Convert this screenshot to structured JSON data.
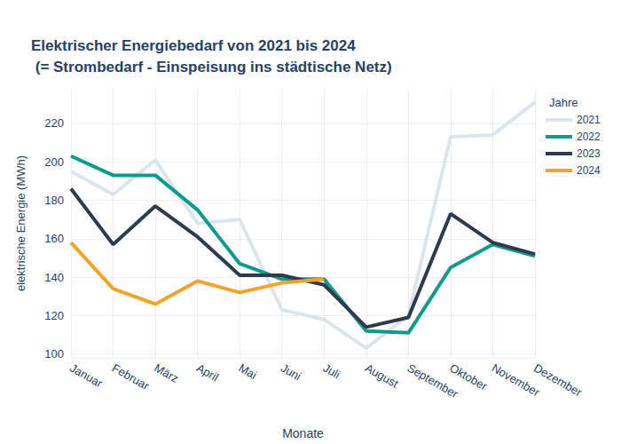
{
  "chart_data": {
    "type": "line",
    "title": "Elektrischer Energiebedarf von 2021 bis 2024\n (= Strombedarf - Einspeisung ins städtische Netz)",
    "x_label": "Monate",
    "y_label": "elektrische Energie (MWh)",
    "legend_title": "Jahre",
    "legend": "top-right",
    "grid": true,
    "categories": [
      "Januar",
      "Februar",
      "März",
      "April",
      "Mai",
      "Juni",
      "Juli",
      "August",
      "September",
      "Oktober",
      "November",
      "Dezember"
    ],
    "series": [
      {
        "name": "2021",
        "color": "#dce5ec",
        "values": [
          195,
          183,
          201,
          168,
          170,
          123,
          118,
          103,
          120,
          213,
          214,
          231
        ]
      },
      {
        "name": "2022",
        "color": "#10998d",
        "values": [
          203,
          193,
          193,
          175,
          147,
          139,
          139,
          112,
          111,
          145,
          157,
          151
        ]
      },
      {
        "name": "2023",
        "color": "#2f3b4c",
        "values": [
          186,
          157,
          177,
          161,
          141,
          141,
          136,
          114,
          119,
          173,
          158,
          152
        ]
      },
      {
        "name": "2024",
        "color": "#f2a32b",
        "values": [
          158,
          134,
          126,
          138,
          132,
          137,
          139,
          null,
          null,
          null,
          null,
          null
        ]
      }
    ],
    "ylim": [
      98,
      238
    ],
    "yticks": [
      100,
      120,
      140,
      160,
      180,
      200,
      220
    ]
  }
}
